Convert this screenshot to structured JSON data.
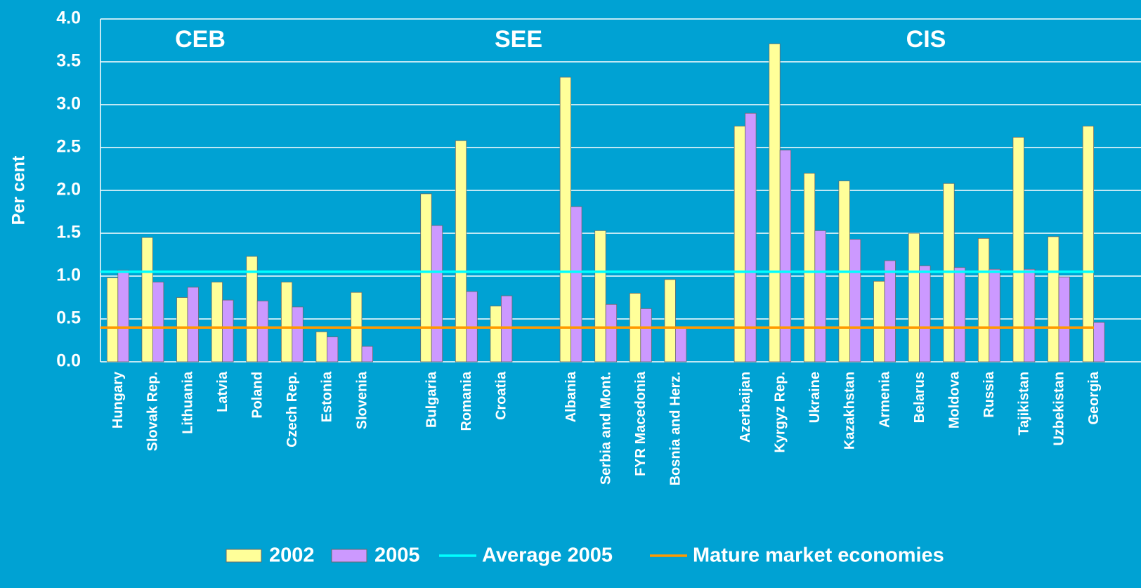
{
  "chart_data": {
    "type": "bar",
    "y_label": "Per cent",
    "annotations": [
      "CEB",
      "SEE",
      "CIS"
    ],
    "categories": [
      "Hungary",
      "Slovak Rep.",
      "Lithuania",
      "Latvia",
      "Poland",
      "Czech Rep.",
      "Estonia",
      "Slovenia",
      null,
      "Bulgaria",
      "Romania",
      "Croatia",
      null,
      "Albania",
      "Serbia and Mont.",
      "FYR Macedonia",
      "Bosnia and Herz.",
      null,
      "Azerbaijan",
      "Kyrgyz Rep.",
      "Ukraine",
      "Kazakhstan",
      "Armenia",
      "Belarus",
      "Moldova",
      "Russia",
      "Tajikistan",
      "Uzbekistan",
      "Georgia"
    ],
    "series": [
      {
        "name": "2002",
        "color": "#ffff99",
        "values": [
          0.98,
          1.45,
          0.75,
          0.93,
          1.23,
          0.93,
          0.35,
          0.81,
          null,
          1.96,
          2.58,
          0.65,
          null,
          3.32,
          1.53,
          0.8,
          0.96,
          null,
          2.75,
          3.71,
          2.2,
          2.11,
          0.94,
          1.5,
          2.08,
          1.44,
          2.62,
          1.46,
          2.75
        ]
      },
      {
        "name": "2005",
        "color": "#cc99ff",
        "values": [
          1.07,
          0.93,
          0.87,
          0.72,
          0.71,
          0.64,
          0.29,
          0.18,
          null,
          1.59,
          0.82,
          0.77,
          null,
          1.81,
          0.67,
          0.62,
          0.4,
          null,
          2.9,
          2.47,
          1.53,
          1.43,
          1.18,
          1.12,
          1.1,
          1.08,
          1.08,
          0.99,
          0.46
        ]
      }
    ],
    "lines": [
      {
        "name": "Average 2005",
        "color": "#00ffff",
        "value": 1.05
      },
      {
        "name": "Mature market economies",
        "color": "#ff9900",
        "value": 0.4
      }
    ],
    "ylim": [
      0,
      4
    ],
    "yticks": [
      {
        "value": 0,
        "label": "0.0"
      },
      0.5,
      {
        "value": 1,
        "label": "1.0"
      },
      1.5,
      {
        "value": 2,
        "label": "2.0"
      },
      2.5,
      {
        "value": 3,
        "label": "3.0"
      },
      3.5,
      {
        "value": 4,
        "label": "4.0"
      }
    ],
    "grid": true,
    "legend": "bottom"
  }
}
